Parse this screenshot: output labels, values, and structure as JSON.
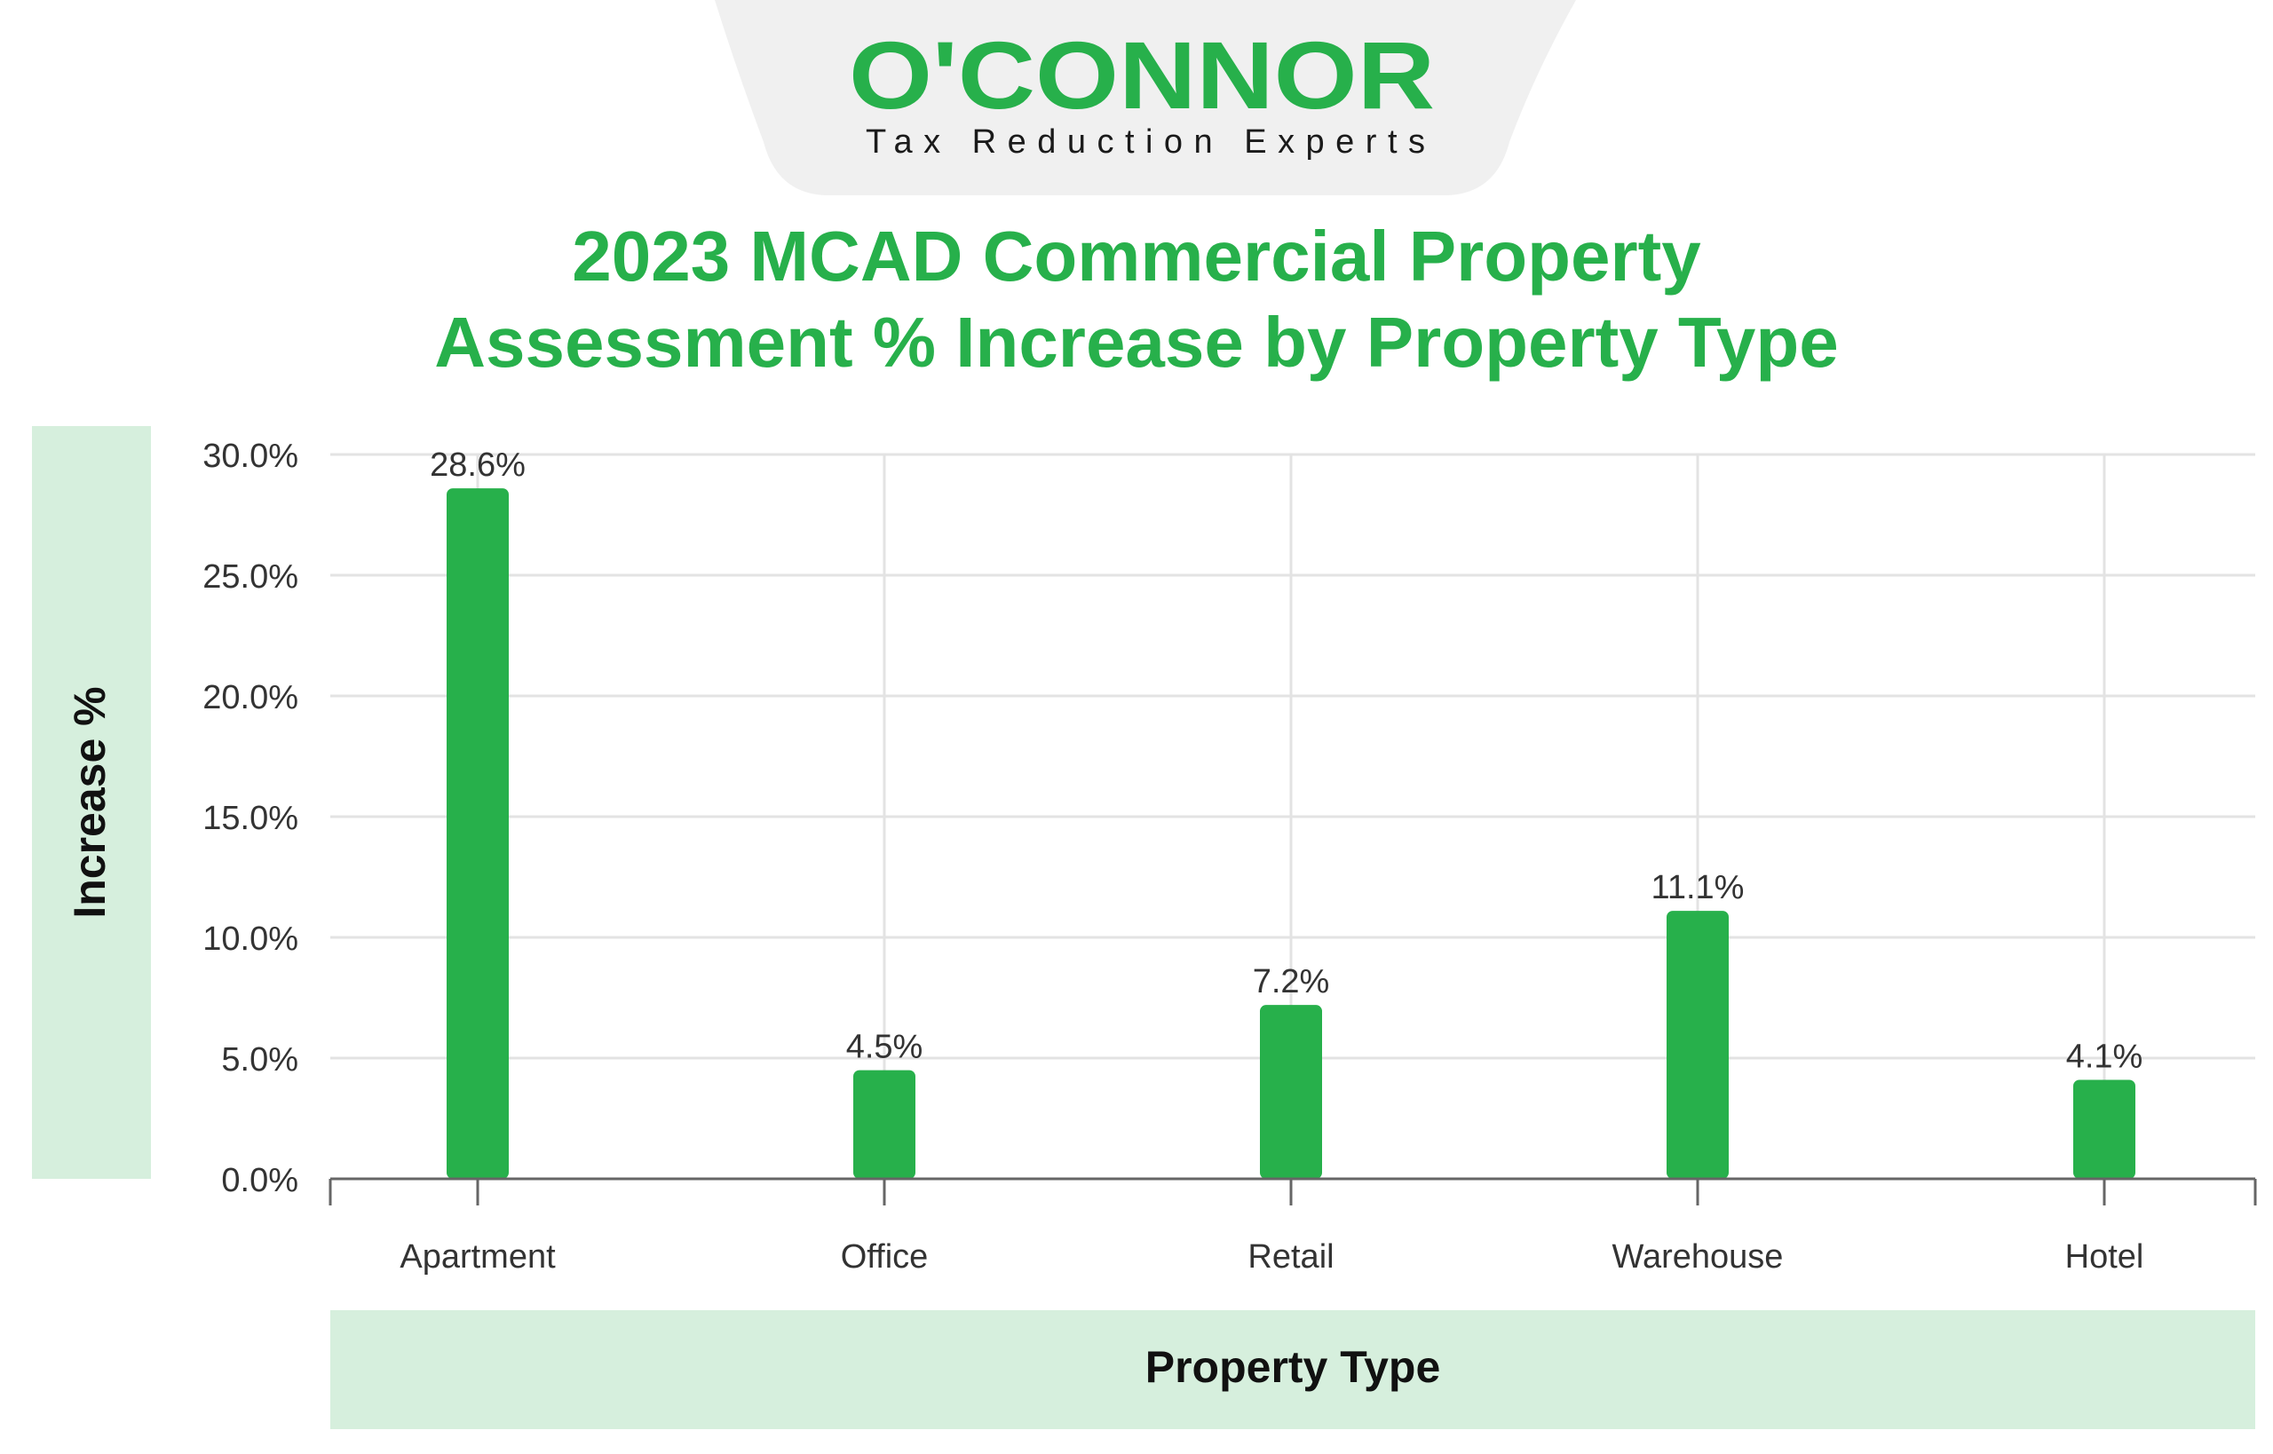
{
  "brand": {
    "name": "O'CONNOR",
    "tagline": "Tax Reduction Experts",
    "color": "#27b04b",
    "tab_color": "#f0f0f0"
  },
  "chart_data": {
    "type": "bar",
    "title_lines": [
      "2023 MCAD Commercial Property",
      "Assessment % Increase by Property Type"
    ],
    "xlabel": "Property Type",
    "ylabel": "Increase %",
    "categories": [
      "Apartment",
      "Office",
      "Retail",
      "Warehouse",
      "Hotel"
    ],
    "values": [
      28.6,
      4.5,
      7.2,
      11.1,
      4.1
    ],
    "value_labels": [
      "28.6%",
      "4.5%",
      "7.2%",
      "11.1%",
      "4.1%"
    ],
    "ylim": [
      0,
      30
    ],
    "yticks": [
      0,
      5,
      10,
      15,
      20,
      25,
      30
    ],
    "ytick_labels": [
      "0.0%",
      "5.0%",
      "10.0%",
      "15.0%",
      "20.0%",
      "25.0%",
      "30.0%"
    ],
    "grid": true,
    "bar_color": "#27b04b",
    "label_band_color": "#d6efdd"
  }
}
